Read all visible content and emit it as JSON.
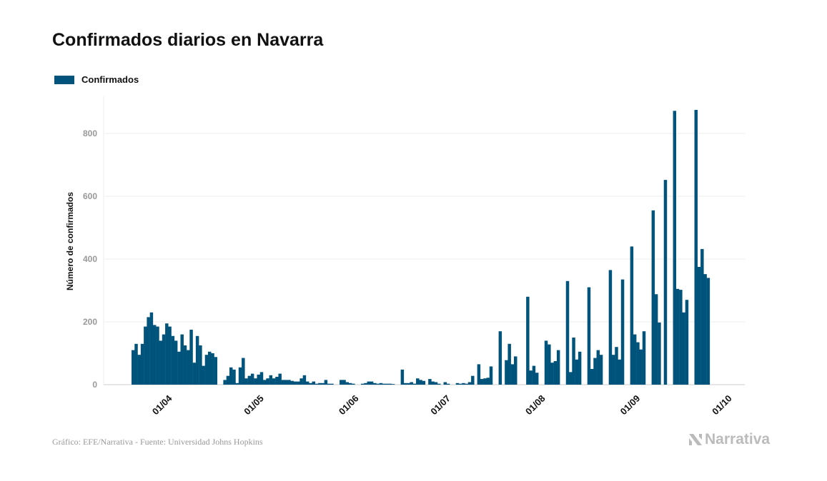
{
  "chart_data": {
    "type": "bar",
    "title": "Confirmados diarios en Navarra",
    "xlabel": "",
    "ylabel": "Número de confirmados",
    "ylim": [
      0,
      900
    ],
    "yticks": [
      0,
      200,
      400,
      600,
      800
    ],
    "grid": true,
    "legend": [
      {
        "label": "Confirmados",
        "color": "#00537a"
      }
    ],
    "legend_placement": "top-left",
    "start_date": "20/03",
    "xticks": [
      {
        "label": "01/04",
        "day_index": 12
      },
      {
        "label": "01/05",
        "day_index": 42
      },
      {
        "label": "01/06",
        "day_index": 73
      },
      {
        "label": "01/07",
        "day_index": 103
      },
      {
        "label": "01/08",
        "day_index": 134
      },
      {
        "label": "01/09",
        "day_index": 165
      },
      {
        "label": "01/10",
        "day_index": 195
      }
    ],
    "values": [
      110,
      130,
      95,
      130,
      185,
      215,
      230,
      190,
      185,
      140,
      160,
      195,
      185,
      155,
      140,
      105,
      160,
      125,
      110,
      175,
      70,
      155,
      125,
      60,
      95,
      105,
      100,
      88,
      0,
      0,
      15,
      28,
      55,
      48,
      5,
      55,
      85,
      20,
      28,
      35,
      20,
      32,
      40,
      15,
      20,
      30,
      20,
      25,
      35,
      15,
      15,
      15,
      12,
      10,
      10,
      20,
      30,
      10,
      5,
      10,
      3,
      5,
      5,
      15,
      3,
      3,
      0,
      0,
      15,
      15,
      8,
      5,
      3,
      0,
      0,
      3,
      5,
      10,
      10,
      5,
      3,
      5,
      3,
      3,
      3,
      2,
      0,
      0,
      48,
      5,
      5,
      8,
      3,
      20,
      15,
      12,
      0,
      18,
      10,
      8,
      3,
      0,
      8,
      3,
      0,
      0,
      5,
      3,
      5,
      3,
      8,
      28,
      0,
      65,
      18,
      20,
      22,
      58,
      0,
      0,
      170,
      0,
      78,
      130,
      65,
      90,
      0,
      0,
      0,
      280,
      45,
      60,
      38,
      0,
      0,
      140,
      128,
      70,
      75,
      110,
      0,
      0,
      330,
      40,
      150,
      80,
      105,
      0,
      0,
      310,
      50,
      85,
      110,
      95,
      0,
      0,
      365,
      95,
      120,
      80,
      335,
      0,
      0,
      440,
      160,
      135,
      112,
      170,
      0,
      0,
      555,
      288,
      198,
      0,
      652,
      0,
      0,
      872,
      305,
      302,
      230,
      270,
      0,
      0,
      875,
      375,
      432,
      352,
      340
    ]
  },
  "footer": {
    "source": "Gráfico: EFE/Narrativa - Fuente: Universidad Johns Hopkins",
    "logo": "Narrativa"
  }
}
